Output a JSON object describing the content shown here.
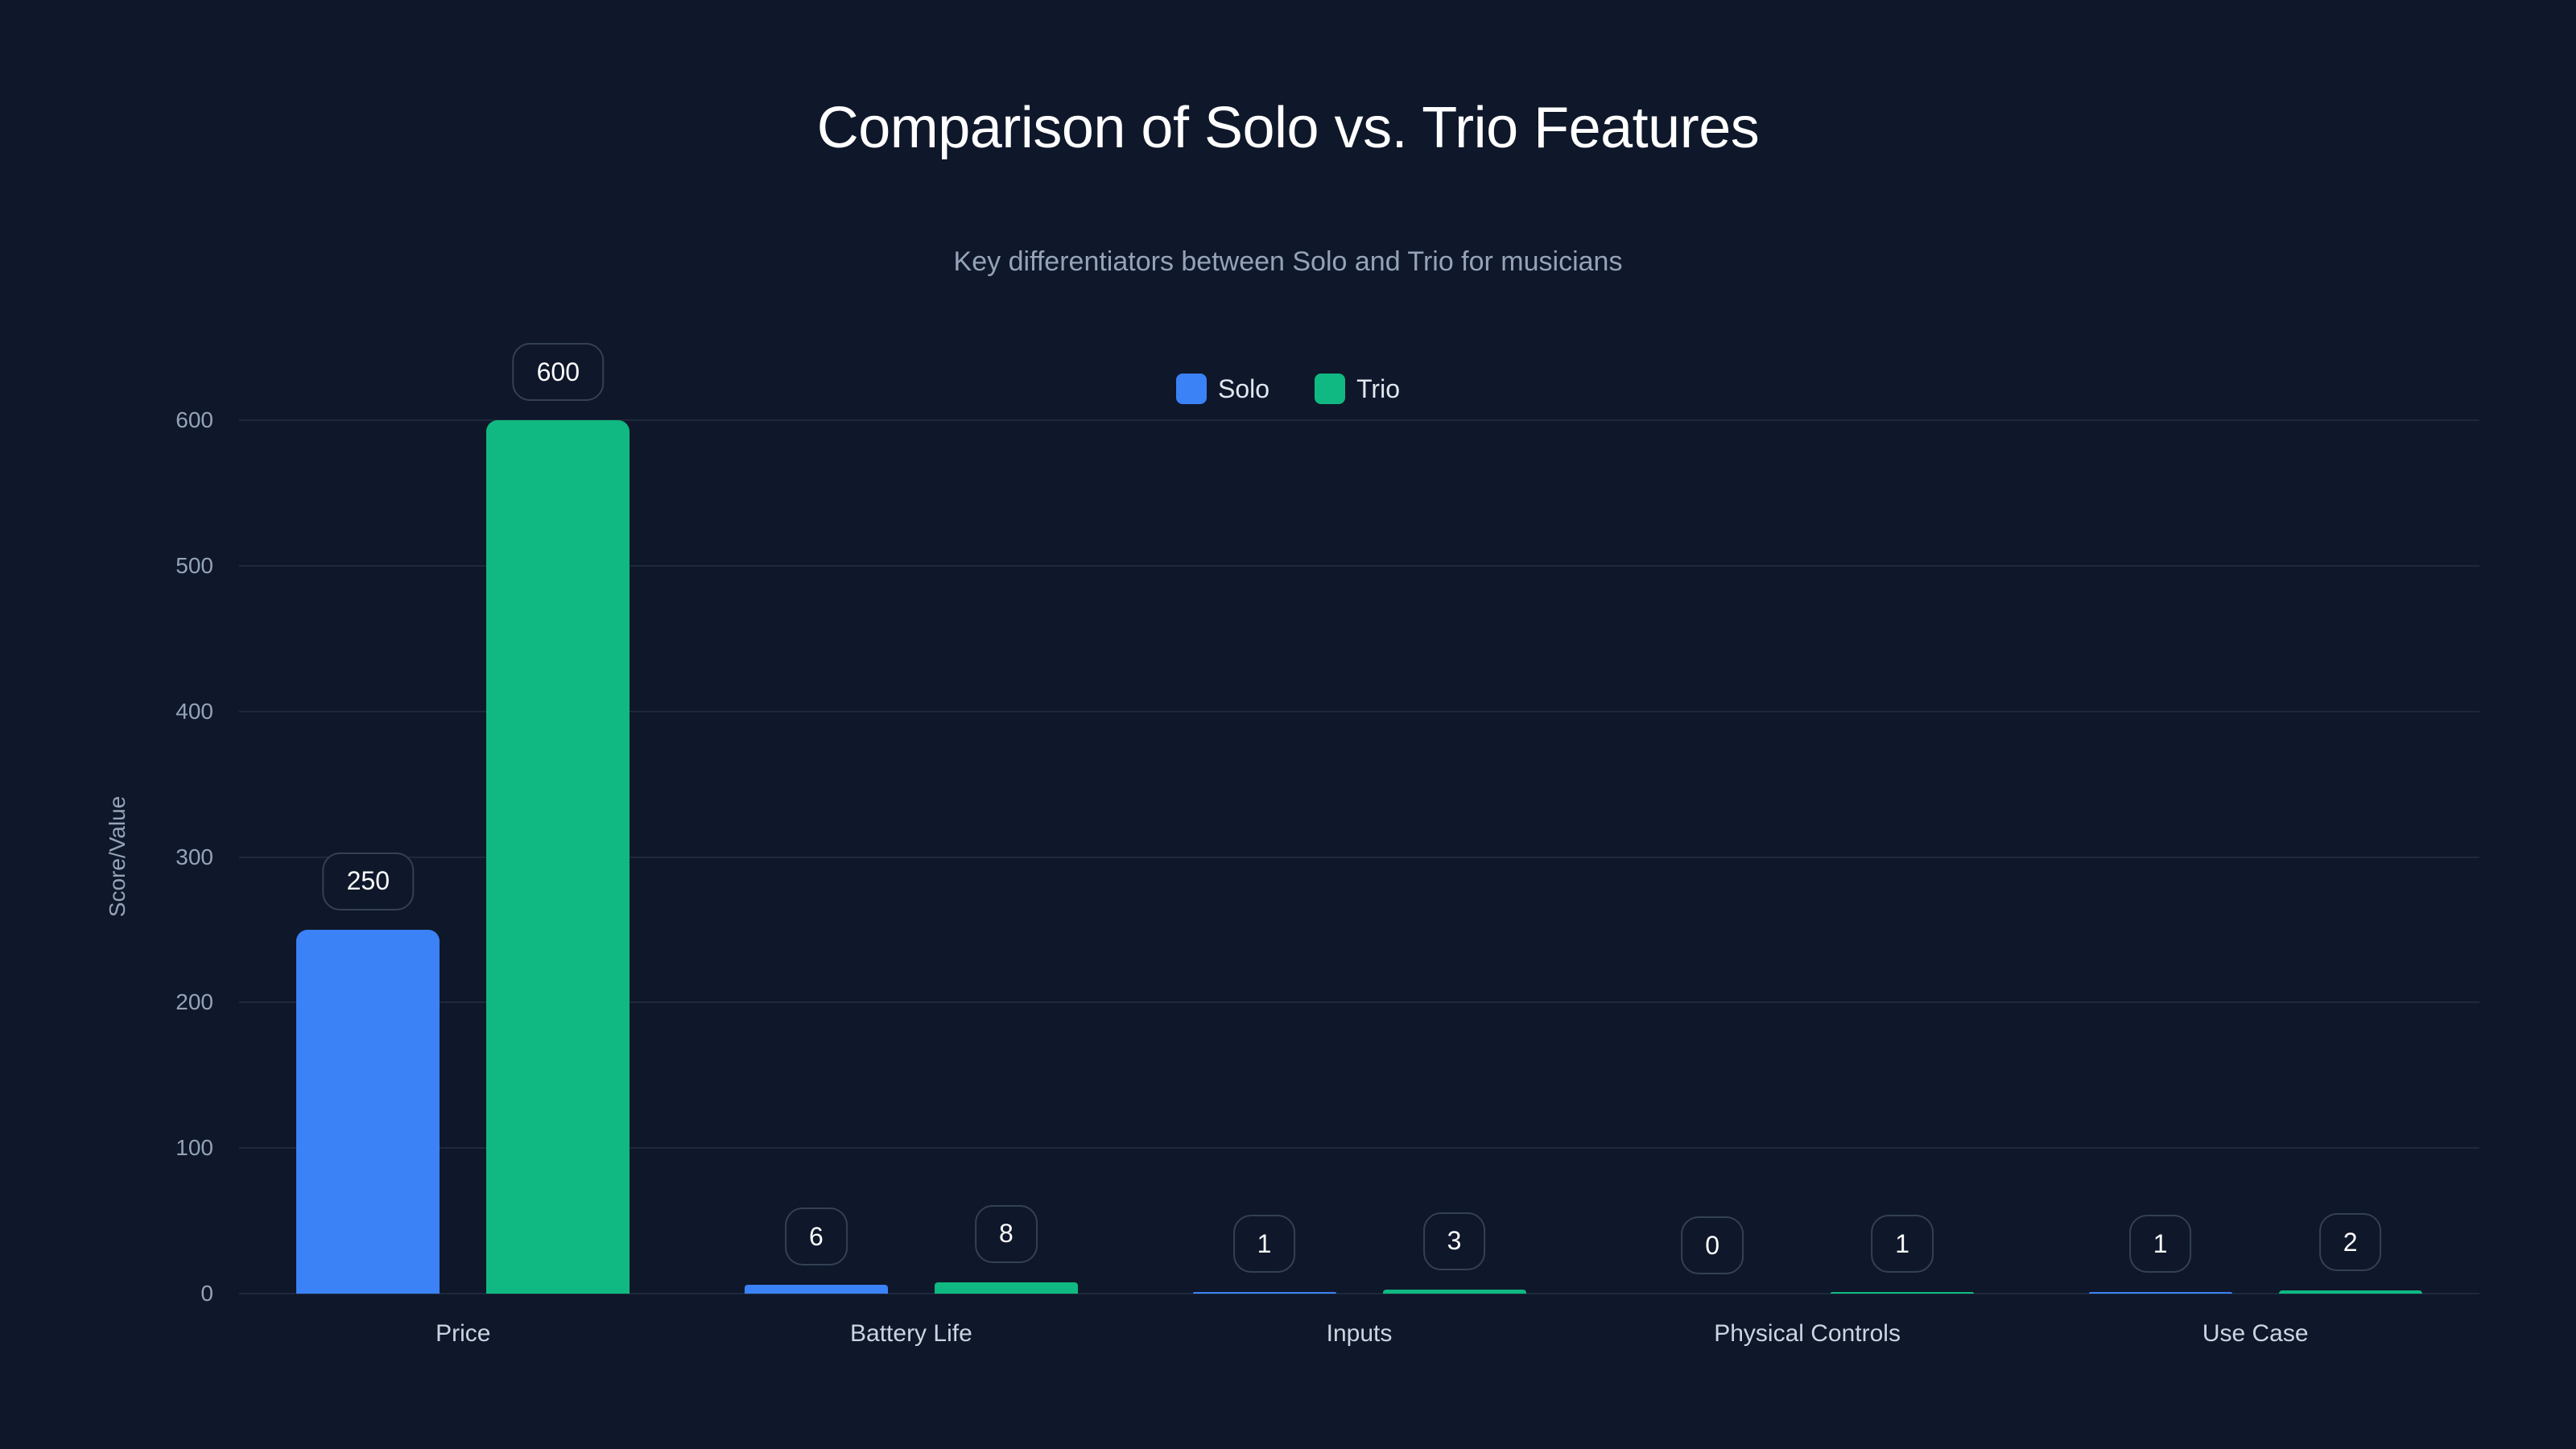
{
  "header": {
    "title": "Comparison of Solo vs. Trio Features",
    "subtitle": "Key differentiators between Solo and Trio for musicians"
  },
  "legend": [
    {
      "label": "Solo",
      "color": "#3b82f6"
    },
    {
      "label": "Trio",
      "color": "#10b981"
    }
  ],
  "axes": {
    "ylabel": "Score/Value",
    "yticks": [
      "0",
      "100",
      "200",
      "300",
      "400",
      "500",
      "600"
    ]
  },
  "chart_data": {
    "type": "bar",
    "title": "Comparison of Solo vs. Trio Features",
    "subtitle": "Key differentiators between Solo and Trio for musicians",
    "categories": [
      "Price",
      "Battery Life",
      "Inputs",
      "Physical Controls",
      "Use Case"
    ],
    "series": [
      {
        "name": "Solo",
        "color": "#3b82f6",
        "values": [
          250,
          6,
          1,
          0,
          1
        ]
      },
      {
        "name": "Trio",
        "color": "#10b981",
        "values": [
          600,
          8,
          3,
          1,
          2
        ]
      }
    ],
    "xlabel": "",
    "ylabel": "Score/Value",
    "ylim": [
      0,
      600
    ],
    "yticks": [
      0,
      100,
      200,
      300,
      400,
      500,
      600
    ],
    "grid": true,
    "legend_position": "top-center",
    "data_labels": true
  }
}
